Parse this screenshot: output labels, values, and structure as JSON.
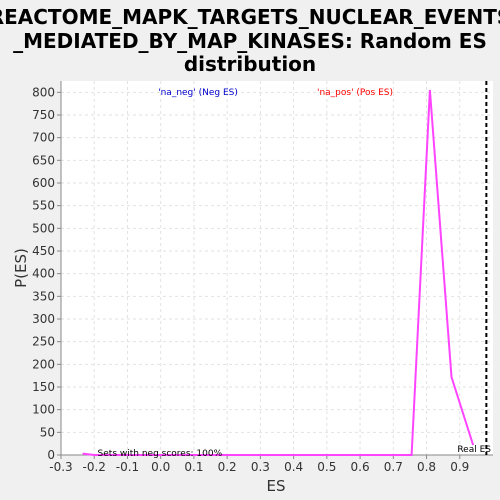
{
  "chart_data": {
    "type": "line",
    "title_lines": [
      "REACTOME_MAPK_TARGETS_NUCLEAR_EVENTS",
      "_MEDIATED_BY_MAP_KINASES: Random ES",
      "distribution"
    ],
    "xlabel": "ES",
    "ylabel": "P(ES)",
    "xlim": [
      -0.3,
      1.0
    ],
    "ylim": [
      0,
      825
    ],
    "xticks": [
      "-0.3",
      "-0.2",
      "-0.1",
      "0.0",
      "0.1",
      "0.2",
      "0.3",
      "0.4",
      "0.5",
      "0.6",
      "0.7",
      "0.8",
      "0.9"
    ],
    "yticks": [
      "0",
      "50",
      "100",
      "150",
      "200",
      "250",
      "300",
      "350",
      "400",
      "450",
      "500",
      "550",
      "600",
      "650",
      "700",
      "750",
      "800"
    ],
    "grid": true,
    "series": [
      {
        "name": "'na_pos' (Pos ES)",
        "color": "#ff44ff",
        "x": [
          -0.235,
          -0.2,
          -0.1,
          0.0,
          0.1,
          0.2,
          0.3,
          0.4,
          0.5,
          0.6,
          0.7,
          0.755,
          0.81,
          0.875,
          0.94
        ],
        "y": [
          3,
          0,
          0,
          0,
          0,
          0,
          0,
          0,
          0,
          0,
          0,
          0,
          805,
          172,
          22
        ]
      }
    ],
    "legend": [
      {
        "label": "'na_neg' (Neg ES)",
        "color": "#0000cc"
      },
      {
        "label": "'na_pos' (Pos ES)",
        "color": "#ff0000"
      }
    ],
    "annotations": {
      "sets_text": "Sets with neg scores: 100%",
      "real_es_label": "Real ES",
      "real_es_value": 0.98
    }
  }
}
